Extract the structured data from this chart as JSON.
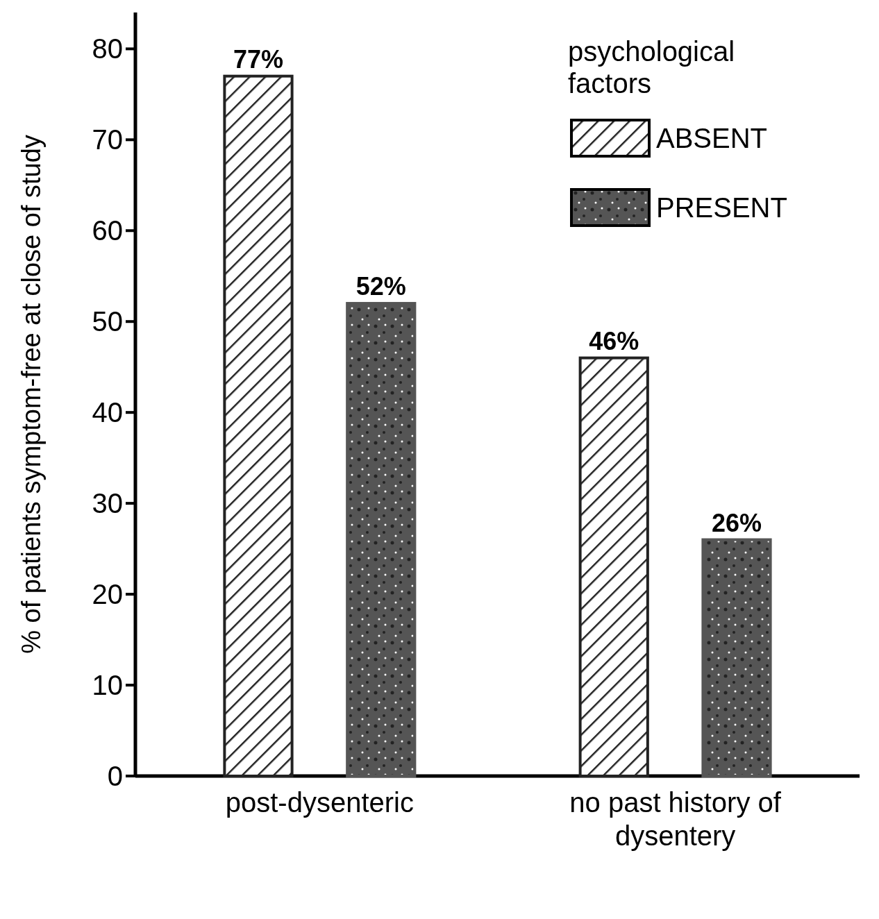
{
  "chart_data": {
    "type": "bar",
    "ylabel": "% of patients symptom-free at close of study",
    "categories": [
      "post-dysenteric",
      "no past history of dysentery"
    ],
    "series": [
      {
        "name": "ABSENT",
        "color": "#222222",
        "values": [
          77,
          46
        ],
        "value_labels": [
          "77%",
          "46%"
        ]
      },
      {
        "name": "PRESENT",
        "color": "#555555",
        "values": [
          52,
          26
        ],
        "value_labels": [
          "52%",
          "26%"
        ]
      }
    ],
    "ylim": [
      0,
      84
    ],
    "yticks": [
      0,
      10,
      20,
      30,
      40,
      50,
      60,
      70,
      80
    ],
    "grid": false,
    "legend": "top right",
    "legend_title": "psychological factors"
  }
}
